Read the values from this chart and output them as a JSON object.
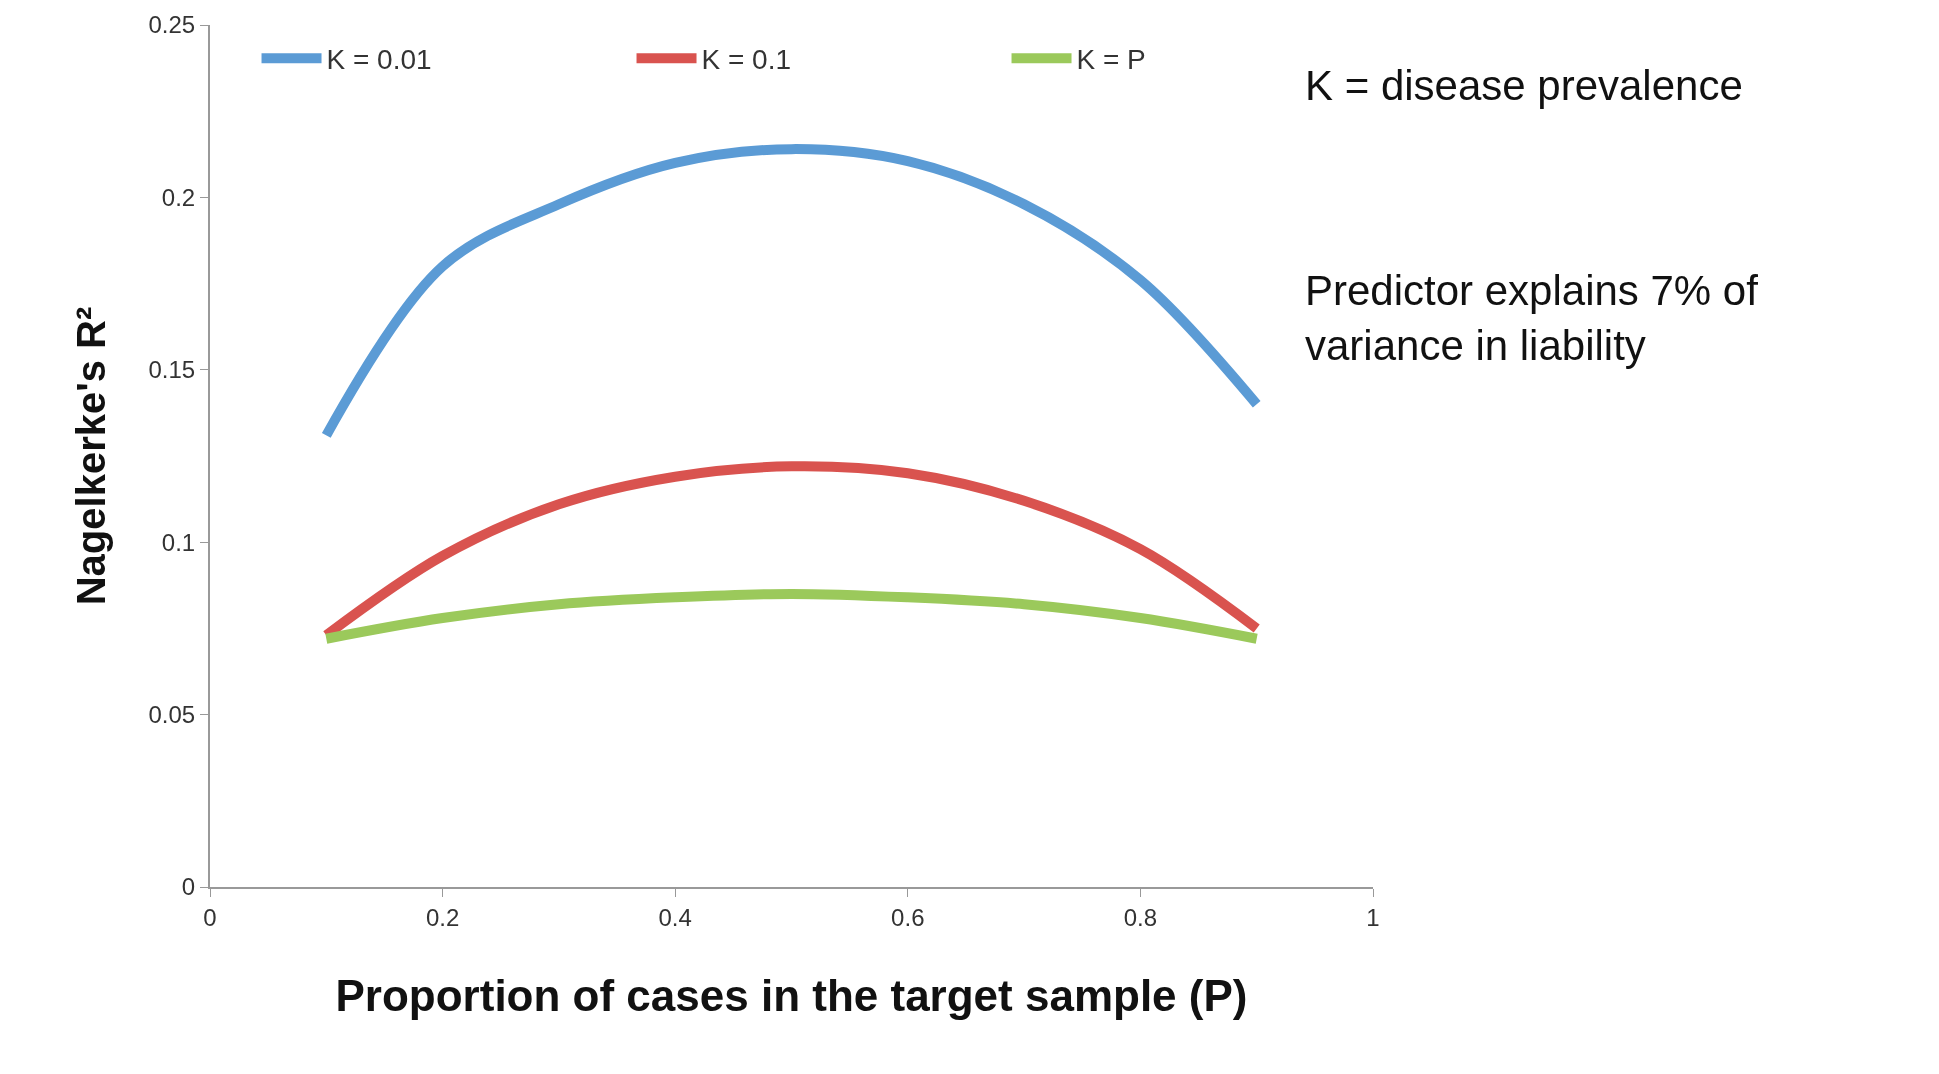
{
  "chart_data": {
    "type": "line",
    "xlabel": "Proportion of cases in the target sample (P)",
    "ylabel": "Nagelkerke's R²",
    "x": [
      0.1,
      0.2,
      0.3,
      0.4,
      0.5,
      0.6,
      0.7,
      0.8,
      0.9
    ],
    "series": [
      {
        "name": "K = 0.01",
        "color": "#5b9bd5",
        "values": [
          0.131,
          0.18,
          0.198,
          0.21,
          0.214,
          0.2105,
          0.198,
          0.176,
          0.14
        ]
      },
      {
        "name": "K = 0.1",
        "color": "#d9534f",
        "values": [
          0.073,
          0.096,
          0.111,
          0.119,
          0.122,
          0.12,
          0.112,
          0.098,
          0.075
        ]
      },
      {
        "name": "K = P",
        "color": "#9bc95b",
        "values": [
          0.072,
          0.078,
          0.082,
          0.084,
          0.085,
          0.084,
          0.082,
          0.078,
          0.072
        ]
      }
    ],
    "xlim": [
      0,
      1
    ],
    "xticks": [
      0,
      0.2,
      0.4,
      0.6,
      0.8,
      1
    ],
    "ylim": [
      0,
      0.25
    ],
    "yticks": [
      0,
      0.05,
      0.1,
      0.15,
      0.2,
      0.25
    ],
    "legend": "top left",
    "marker": "none",
    "line_style": "solid",
    "annotations": [
      "K = disease prevalence",
      "Predictor explains 7% of\nvariance in liability"
    ]
  }
}
